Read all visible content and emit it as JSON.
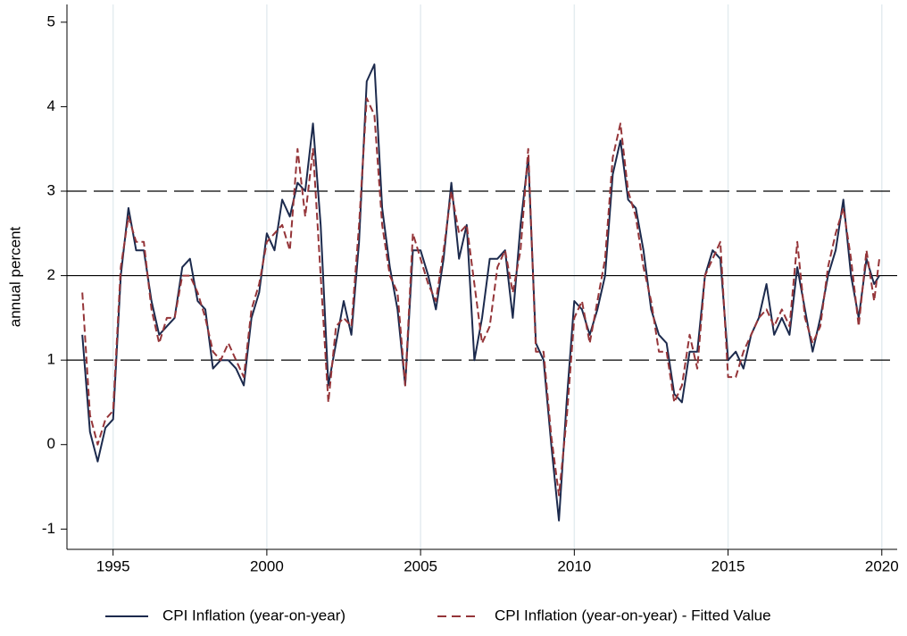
{
  "chart_data": {
    "type": "line",
    "y_label": "annual percent",
    "x": [
      1994,
      1994.25,
      1994.5,
      1994.75,
      1995,
      1995.25,
      1995.5,
      1995.75,
      1996,
      1996.25,
      1996.5,
      1996.75,
      1997,
      1997.25,
      1997.5,
      1997.75,
      1998,
      1998.25,
      1998.5,
      1998.75,
      1999,
      1999.25,
      1999.5,
      1999.75,
      2000,
      2000.25,
      2000.5,
      2000.75,
      2001,
      2001.25,
      2001.5,
      2001.75,
      2002,
      2002.25,
      2002.5,
      2002.75,
      2003,
      2003.25,
      2003.5,
      2003.75,
      2004,
      2004.25,
      2004.5,
      2004.75,
      2005,
      2005.25,
      2005.5,
      2005.75,
      2006,
      2006.25,
      2006.5,
      2006.75,
      2007,
      2007.25,
      2007.5,
      2007.75,
      2008,
      2008.25,
      2008.5,
      2008.75,
      2009,
      2009.25,
      2009.5,
      2009.75,
      2010,
      2010.25,
      2010.5,
      2010.75,
      2011,
      2011.25,
      2011.5,
      2011.75,
      2012,
      2012.25,
      2012.5,
      2012.75,
      2013,
      2013.25,
      2013.5,
      2013.75,
      2014,
      2014.25,
      2014.5,
      2014.75,
      2015,
      2015.25,
      2015.5,
      2015.75,
      2016,
      2016.25,
      2016.5,
      2016.75,
      2017,
      2017.25,
      2017.5,
      2017.75,
      2018,
      2018.25,
      2018.5,
      2018.75,
      2019,
      2019.25,
      2019.5,
      2019.75,
      2019.92
    ],
    "series": [
      {
        "name": "CPI Inflation (year-on-year)",
        "color": "#1c2a4d",
        "dashed": false,
        "values": [
          1.3,
          0.15,
          -0.2,
          0.2,
          0.3,
          2.0,
          2.8,
          2.3,
          2.3,
          1.7,
          1.3,
          1.4,
          1.5,
          2.1,
          2.2,
          1.7,
          1.6,
          0.9,
          1.0,
          1.0,
          0.9,
          0.7,
          1.5,
          1.8,
          2.5,
          2.3,
          2.9,
          2.7,
          3.1,
          3.0,
          3.8,
          2.6,
          0.7,
          1.2,
          1.7,
          1.3,
          2.4,
          4.3,
          4.5,
          2.8,
          2.1,
          1.6,
          0.7,
          2.3,
          2.3,
          2.0,
          1.6,
          2.2,
          3.1,
          2.2,
          2.6,
          1.0,
          1.5,
          2.2,
          2.2,
          2.3,
          1.5,
          2.6,
          3.4,
          1.2,
          1.0,
          0.0,
          -0.9,
          0.5,
          1.7,
          1.6,
          1.3,
          1.6,
          2.0,
          3.2,
          3.6,
          2.9,
          2.8,
          2.3,
          1.6,
          1.3,
          1.2,
          0.6,
          0.5,
          1.1,
          1.1,
          2.0,
          2.3,
          2.2,
          1.0,
          1.1,
          0.9,
          1.3,
          1.5,
          1.9,
          1.3,
          1.5,
          1.3,
          2.1,
          1.6,
          1.1,
          1.5,
          2.0,
          2.3,
          2.9,
          2.0,
          1.5,
          2.2,
          1.9,
          2.0
        ]
      },
      {
        "name": "CPI Inflation (year-on-year) - Fitted Value",
        "color": "#953539",
        "dashed": true,
        "values": [
          1.8,
          0.35,
          0.0,
          0.3,
          0.4,
          2.1,
          2.7,
          2.4,
          2.4,
          1.6,
          1.2,
          1.5,
          1.5,
          2.0,
          2.0,
          1.8,
          1.5,
          1.1,
          1.0,
          1.2,
          1.0,
          0.8,
          1.6,
          1.9,
          2.4,
          2.5,
          2.6,
          2.3,
          3.5,
          2.7,
          3.5,
          2.0,
          0.5,
          1.4,
          1.5,
          1.4,
          2.6,
          4.1,
          3.9,
          2.6,
          2.0,
          1.8,
          0.7,
          2.5,
          2.2,
          1.9,
          1.7,
          2.3,
          3.0,
          2.5,
          2.6,
          1.9,
          1.2,
          1.4,
          2.1,
          2.3,
          1.8,
          2.3,
          3.5,
          1.1,
          1.1,
          0.1,
          -0.6,
          0.3,
          1.5,
          1.7,
          1.2,
          1.7,
          2.2,
          3.4,
          3.8,
          3.0,
          2.7,
          2.1,
          1.7,
          1.1,
          1.1,
          0.5,
          0.7,
          1.3,
          0.9,
          2.0,
          2.2,
          2.4,
          0.8,
          0.8,
          1.1,
          1.3,
          1.5,
          1.6,
          1.4,
          1.6,
          1.4,
          2.4,
          1.5,
          1.2,
          1.4,
          2.1,
          2.5,
          2.8,
          2.2,
          1.4,
          2.3,
          1.7,
          2.2
        ]
      }
    ],
    "xlim": [
      1993.5,
      2020.5
    ],
    "xticks": [
      1995,
      2000,
      2005,
      2010,
      2015,
      2020
    ],
    "ylim": [
      -1.24,
      5.21
    ],
    "yticks": [
      -1,
      0,
      1,
      2,
      3,
      4,
      5
    ],
    "hlines": [
      {
        "value": 1,
        "dashed": true
      },
      {
        "value": 2,
        "dashed": false
      },
      {
        "value": 3,
        "dashed": true
      }
    ],
    "grid": "x",
    "legend": "bottom"
  }
}
